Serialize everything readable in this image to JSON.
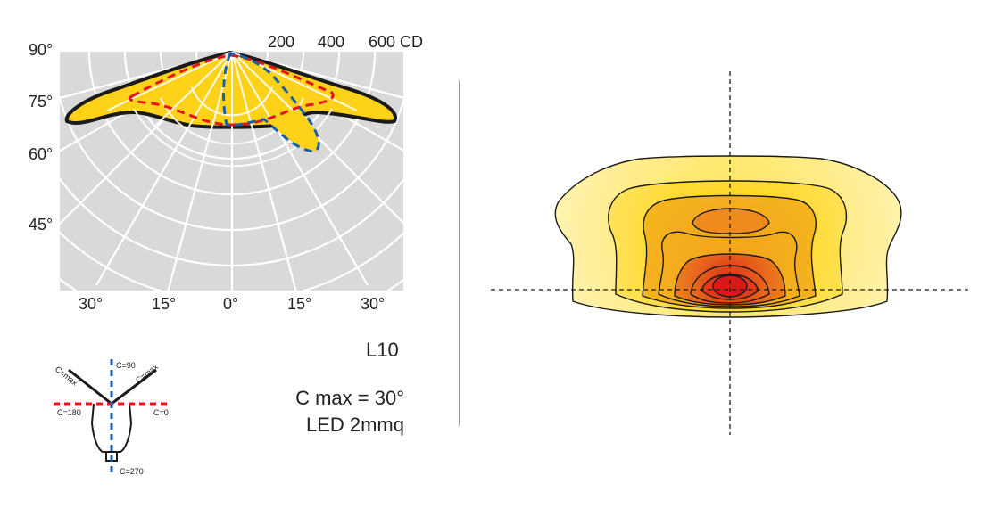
{
  "polar_diagram": {
    "angle_labels_left": [
      "90°",
      "75°",
      "60°",
      "45°"
    ],
    "scale_labels": [
      "200",
      "400",
      "600 CD"
    ],
    "bottom_angle_labels": [
      "30°",
      "15°",
      "0°",
      "15°",
      "30°"
    ]
  },
  "orientation_key": {
    "c_max_left": "C=max",
    "c_max_right": "C=max",
    "c90": "C=90",
    "c180": "C=180",
    "c0": "C=0",
    "c270": "C=270"
  },
  "info": {
    "model": "L10",
    "c_max": "C max = 30°",
    "light_source": "LED 2mmq"
  },
  "colors": {
    "background_grid": "#d9d9da",
    "fill_yellow": "#ffd21a",
    "outline_black": "#1a1a1a",
    "curve_red": "#e5141e",
    "curve_blue": "#1b5fa8",
    "isolux_outer": "#fff3a6",
    "isolux_core": "#d91818"
  }
}
